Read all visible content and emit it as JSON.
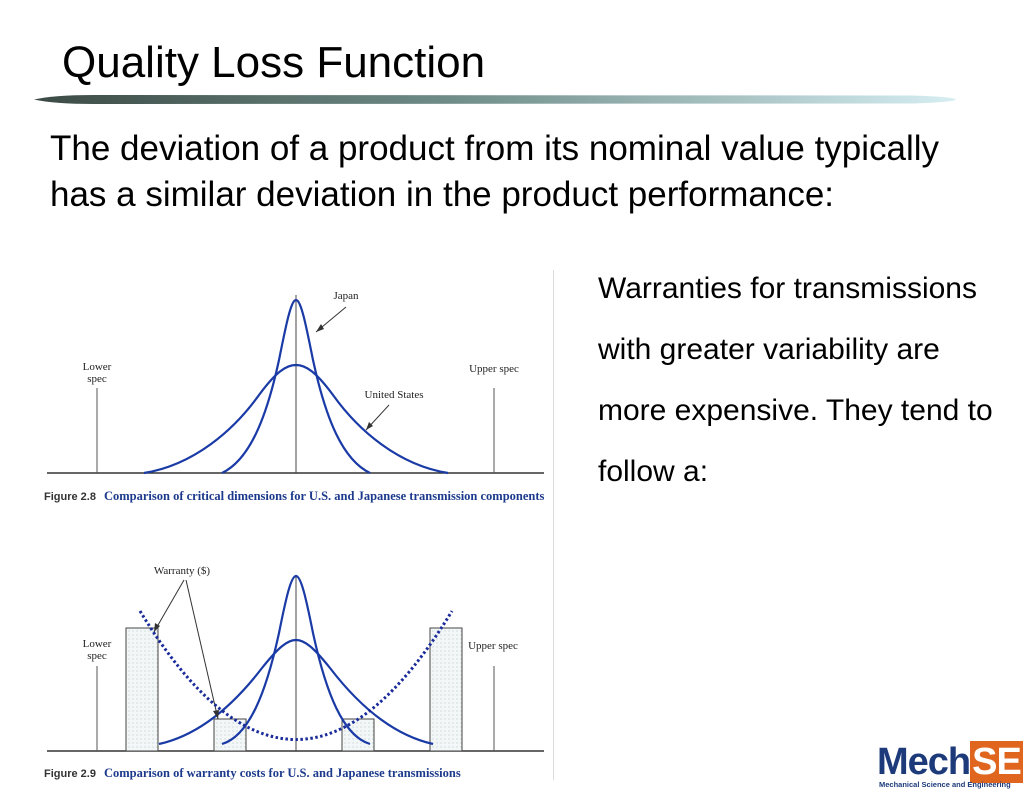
{
  "slide": {
    "title": "Quality Loss Function",
    "lead": "The deviation of a product from its nominal value typically has a similar deviation in the product performance:",
    "side_text": "Warranties for transmissions with greater variability are more expensive.  They tend to follow a:"
  },
  "figure_1": {
    "label_japan": "Japan",
    "label_us": "United States",
    "label_lower": "Lower spec",
    "label_upper": "Upper spec",
    "fig_no": "Figure 2.8",
    "caption": "Comparison of critical dimensions for U.S. and Japanese transmission components"
  },
  "figure_2": {
    "label_warranty": "Warranty ($)",
    "label_lower": "Lower spec",
    "label_upper": "Upper spec",
    "fig_no": "Figure 2.9",
    "caption": "Comparison of warranty costs for U.S. and Japanese transmissions"
  },
  "logo": {
    "mech": "Mech",
    "se": "SE",
    "subtitle": "Mechanical Science and Engineering"
  },
  "colors": {
    "curve": "#1a3aa6",
    "quadratic": "#1a2b9a",
    "caption": "#1c3a8c",
    "logo_orange": "#e0651e",
    "logo_blue": "#1d3b7a"
  }
}
